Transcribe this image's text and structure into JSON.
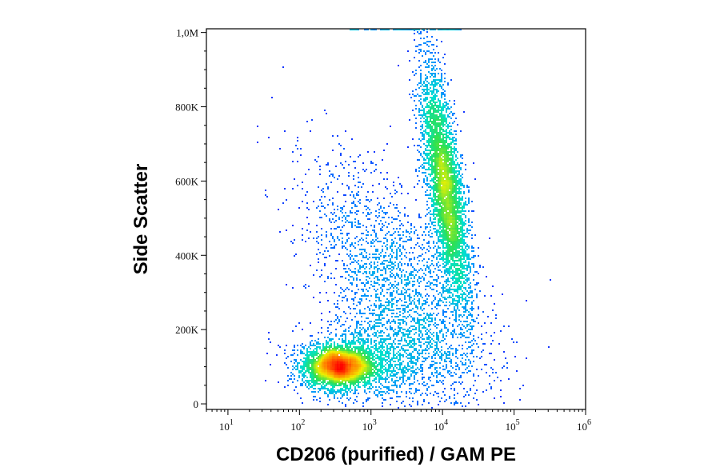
{
  "chart_data": {
    "type": "scatter",
    "subtype": "flow-cytometry-density-dot-plot",
    "xlabel": "CD206 (purified) / GAM PE",
    "ylabel": "Side Scatter",
    "x_scale": "log",
    "xlim": [
      5,
      1000000
    ],
    "x_ticks": [
      {
        "value": 10,
        "base": "10",
        "exp": "1"
      },
      {
        "value": 100,
        "base": "10",
        "exp": "2"
      },
      {
        "value": 1000,
        "base": "10",
        "exp": "3"
      },
      {
        "value": 10000,
        "base": "10",
        "exp": "4"
      },
      {
        "value": 100000,
        "base": "10",
        "exp": "5"
      },
      {
        "value": 1000000,
        "base": "10",
        "exp": "6"
      }
    ],
    "y_scale": "linear",
    "ylim": [
      -15000,
      1010000
    ],
    "y_ticks": [
      {
        "value": 0,
        "label": "0"
      },
      {
        "value": 200000,
        "label": "200K"
      },
      {
        "value": 400000,
        "label": "400K"
      },
      {
        "value": 600000,
        "label": "600K"
      },
      {
        "value": 800000,
        "label": "800K"
      },
      {
        "value": 1000000,
        "label": "1,0M"
      }
    ],
    "color_scale": [
      "#1a1aff",
      "#0090ff",
      "#00e0d0",
      "#30e050",
      "#f0f000",
      "#ff8000",
      "#ff0000"
    ],
    "grid": false,
    "populations": [
      {
        "x_center": 350,
        "y_center": 100000,
        "x_spread_decades": 0.25,
        "y_spread": 28000,
        "rotation_deg": 0,
        "n_points": 3200,
        "relative_density": 1.0
      },
      {
        "x_center": 11000,
        "y_center": 580000,
        "x_spread_decades": 0.12,
        "y_spread": 165000,
        "rotation_deg": 8,
        "n_points": 4200,
        "relative_density": 0.55
      },
      {
        "x_center": 2500,
        "y_center": 300000,
        "x_spread_decades": 0.45,
        "y_spread": 190000,
        "rotation_deg": 30,
        "n_points": 2400,
        "relative_density": 0.12
      },
      {
        "x_center": 1200,
        "y_center": 120000,
        "x_spread_decades": 0.5,
        "y_spread": 60000,
        "rotation_deg": 0,
        "n_points": 1200,
        "relative_density": 0.1
      }
    ]
  }
}
